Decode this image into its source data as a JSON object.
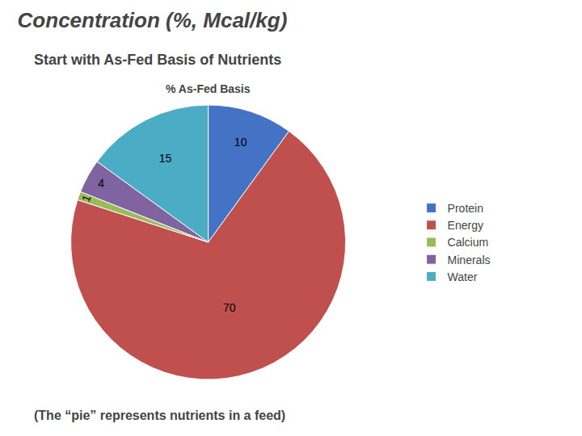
{
  "chart_data": {
    "type": "pie",
    "title": "Concentration (%, Mcal/kg)",
    "subtitle": "Start with As-Fed Basis of Nutrients",
    "annotations": [
      "% As-Fed Basis",
      "(The “pie” represents nutrients in a feed)"
    ],
    "categories": [
      "Protein",
      "Energy",
      "Calcium",
      "Minerals",
      "Water"
    ],
    "values": [
      10,
      70,
      1,
      4,
      15
    ],
    "colors": [
      "#4472C4",
      "#C0504D",
      "#9BBB59",
      "#8064A2",
      "#4BACC6"
    ],
    "data_labels": true,
    "legend": "right"
  }
}
